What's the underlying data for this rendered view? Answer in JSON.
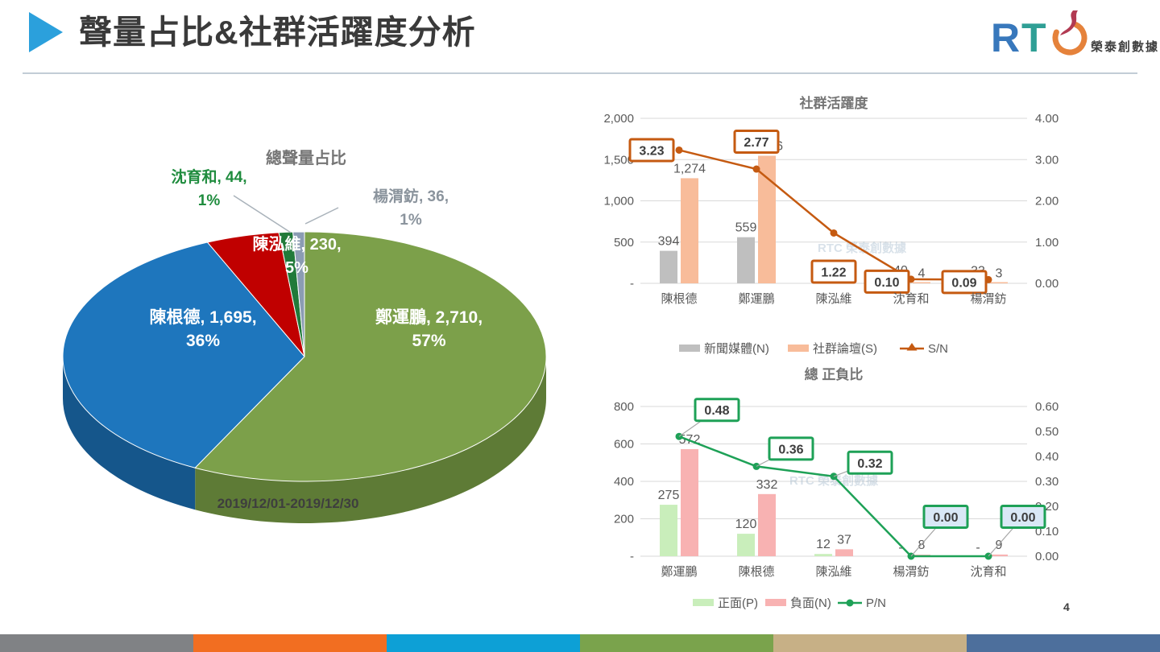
{
  "header": {
    "title": "聲量占比&社群活躍度分析",
    "logo": {
      "letter_r": "R",
      "letter_t": "T",
      "letter_c": "C",
      "company": "榮泰創數據"
    }
  },
  "watermark": "RTC 榮泰創數據",
  "chart_data": [
    {
      "type": "pie",
      "title": "總聲量占比",
      "date_range": "2019/12/01-2019/12/30",
      "slices": [
        {
          "name": "鄭運鵬",
          "value": 2710,
          "pct": "57%",
          "label": "鄭運鵬, 2,710,",
          "color": "#7ca04a",
          "side": "#5e7b36"
        },
        {
          "name": "陳根德",
          "value": 1695,
          "pct": "36%",
          "label": "陳根德, 1,695,",
          "color": "#1e76bd",
          "side": "#15568b"
        },
        {
          "name": "陳泓維",
          "value": 230,
          "pct": "5%",
          "label": "陳泓維, 230,",
          "color": "#c00000",
          "side": "#8b0000"
        },
        {
          "name": "沈育和",
          "value": 44,
          "pct": "1%",
          "label": "沈育和, 44,",
          "color": "#217a39",
          "side": "#185a2a"
        },
        {
          "name": "楊渭鈁",
          "value": 36,
          "pct": "1%",
          "label": "楊渭鈁, 36,",
          "color": "#8b9cb3",
          "side": "#68788c"
        }
      ]
    },
    {
      "type": "combo-bar-line",
      "title": "社群活躍度",
      "categories": [
        "陳根德",
        "鄭運鵬",
        "陳泓維",
        "沈育和",
        "楊渭鈁"
      ],
      "series": [
        {
          "name": "新聞媒體(N)",
          "type": "bar",
          "color": "#bfbfbf",
          "values": [
            394,
            559,
            88,
            40,
            33
          ],
          "labels": [
            "394",
            "559",
            "88",
            "40",
            "33"
          ]
        },
        {
          "name": "社群論壇(S)",
          "type": "bar",
          "color": "#f8bc9a",
          "values": [
            1274,
            1546,
            107,
            4,
            3
          ],
          "labels": [
            "1,274",
            "1,546",
            "107",
            "4",
            "3"
          ]
        },
        {
          "name": "S/N",
          "type": "line",
          "color": "#c55a11",
          "values": [
            3.23,
            2.77,
            1.22,
            0.1,
            0.09
          ],
          "labels": [
            "3.23",
            "2.77",
            "1.22",
            "0.10",
            "0.09"
          ]
        }
      ],
      "left_axis": {
        "max": 2000,
        "ticks": [
          "2,000",
          "1,500",
          "1,000",
          "500",
          "-"
        ]
      },
      "right_axis": {
        "max": 4,
        "ticks": [
          "4.00",
          "3.00",
          "2.00",
          "1.00",
          "0.00"
        ]
      },
      "legend_position": "bottom",
      "grid": true
    },
    {
      "type": "combo-bar-line",
      "title": "總 正負比",
      "categories": [
        "鄭運鵬",
        "陳根德",
        "陳泓維",
        "楊渭鈁",
        "沈育和"
      ],
      "series": [
        {
          "name": "正面(P)",
          "type": "bar",
          "color": "#c9eebb",
          "values": [
            275,
            120,
            12,
            0,
            0
          ],
          "labels": [
            "275",
            "120",
            "12",
            "-",
            "-"
          ]
        },
        {
          "name": "負面(N)",
          "type": "bar",
          "color": "#f8b2b2",
          "values": [
            572,
            332,
            37,
            8,
            9
          ],
          "labels": [
            "572",
            "332",
            "37",
            "8",
            "9"
          ]
        },
        {
          "name": "P/N",
          "type": "line",
          "color": "#1ea157",
          "values": [
            0.48,
            0.36,
            0.32,
            0.0,
            0.0
          ],
          "labels": [
            "0.48",
            "0.36",
            "0.32",
            "0.00",
            "0.00"
          ]
        }
      ],
      "left_axis": {
        "max": 800,
        "ticks": [
          "800",
          "600",
          "400",
          "200",
          "-"
        ]
      },
      "right_axis": {
        "max": 0.6,
        "ticks": [
          "0.60",
          "0.50",
          "0.40",
          "0.30",
          "0.20",
          "0.10",
          "0.00"
        ]
      },
      "legend_position": "bottom",
      "grid": true
    }
  ],
  "footer": {
    "page_number": "4",
    "stripe_colors": [
      "#808285",
      "#f26e21",
      "#0da0d6",
      "#7aa34c",
      "#c7b086",
      "#4d6f9c"
    ]
  }
}
